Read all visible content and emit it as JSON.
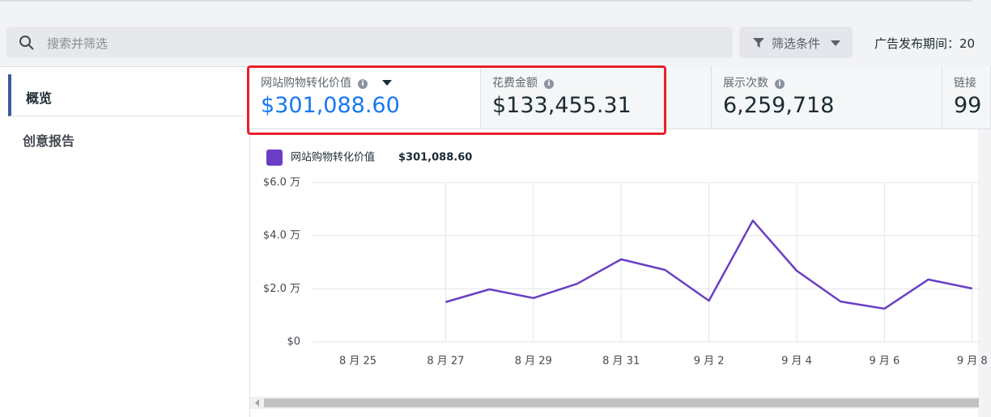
{
  "search": {
    "placeholder": "搜索并筛选"
  },
  "filter_button": "筛选条件",
  "date_range_label": "广告发布期间：20",
  "nav": [
    "概览",
    "创意报告"
  ],
  "metrics": [
    {
      "label": "网站购物转化价值",
      "value": "$301,088.60"
    },
    {
      "label": "花费金额",
      "value": "$133,455.31"
    },
    {
      "label": "展示次数",
      "value": "6,259,718"
    },
    {
      "label": "链接",
      "value": "99"
    }
  ],
  "chart_data": {
    "type": "line",
    "legend_total": "$301,088.60",
    "categories": [
      "8 月 25",
      null,
      "8 月 27",
      null,
      "8 月 29",
      null,
      "8 月 31",
      null,
      "9 月 2",
      null,
      "9 月 4",
      null,
      "9 月 6",
      null,
      "9 月 8"
    ],
    "series": [
      {
        "name": "网站购物转化价值",
        "color": "#6a3fc4",
        "values": [
          null,
          null,
          15000,
          19800,
          16500,
          21900,
          31100,
          27100,
          15500,
          45700,
          26800,
          15200,
          12500,
          23500,
          20100
        ]
      }
    ],
    "ylim": [
      0,
      60000
    ],
    "yticks": [
      {
        "value": 0,
        "label": "$0"
      },
      {
        "value": 20000,
        "label": "$2.0 万"
      },
      {
        "value": 40000,
        "label": "$4.0 万"
      },
      {
        "value": 60000,
        "label": "$6.0 万"
      }
    ],
    "grid": true
  }
}
